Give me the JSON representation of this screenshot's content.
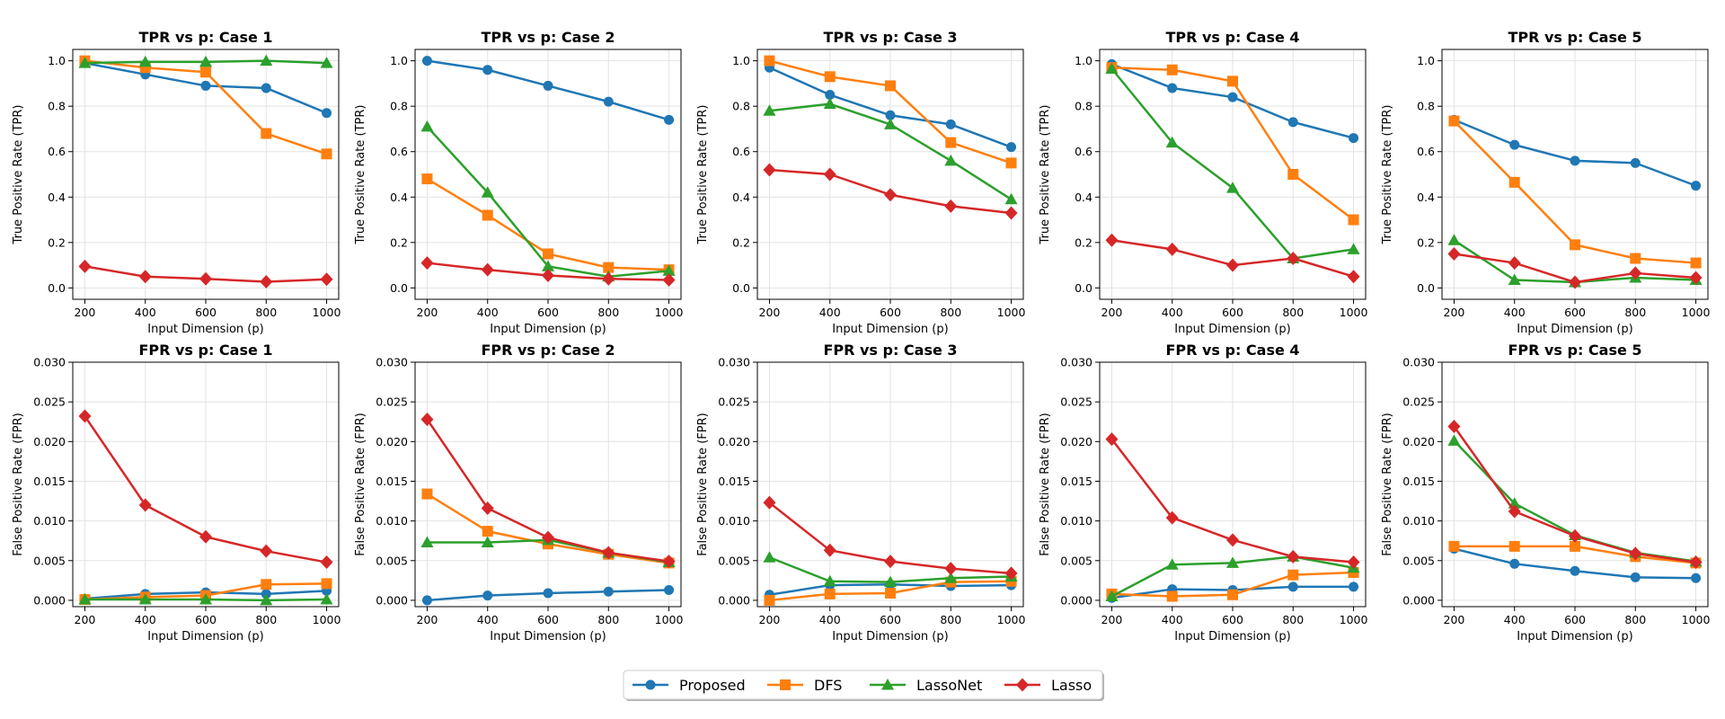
{
  "series_styles": [
    {
      "name": "Proposed",
      "color": "#1f77b4",
      "marker": "circle"
    },
    {
      "name": "DFS",
      "color": "#ff7f0e",
      "marker": "square"
    },
    {
      "name": "LassoNet",
      "color": "#2ca02c",
      "marker": "triangle"
    },
    {
      "name": "Lasso",
      "color": "#d62728",
      "marker": "diamond"
    }
  ],
  "legend": {
    "placement": "bottom-center",
    "labels": [
      "Proposed",
      "DFS",
      "LassoNet",
      "Lasso"
    ]
  },
  "chart_data": [
    {
      "type": "line",
      "title": "TPR vs p: Case 1",
      "xlabel": "Input Dimension (p)",
      "ylabel": "True Positive Rate (TPR)",
      "x": [
        200,
        400,
        600,
        800,
        1000
      ],
      "ylim": [
        -0.05,
        1.05
      ],
      "yticks": [
        0.0,
        0.2,
        0.4,
        0.6,
        0.8,
        1.0
      ],
      "ytick_labels": [
        "0.0",
        "0.2",
        "0.4",
        "0.6",
        "0.8",
        "1.0"
      ],
      "xticks": [
        200,
        400,
        600,
        800,
        1000
      ],
      "xtick_labels": [
        "200",
        "400",
        "600",
        "800",
        "1000"
      ],
      "grid": true,
      "series": [
        {
          "name": "Proposed",
          "values": [
            0.99,
            0.94,
            0.89,
            0.88,
            0.77
          ]
        },
        {
          "name": "DFS",
          "values": [
            1.0,
            0.97,
            0.95,
            0.68,
            0.59
          ]
        },
        {
          "name": "LassoNet",
          "values": [
            0.99,
            0.995,
            0.995,
            1.0,
            0.99
          ]
        },
        {
          "name": "Lasso",
          "values": [
            0.095,
            0.05,
            0.04,
            0.027,
            0.038
          ]
        }
      ]
    },
    {
      "type": "line",
      "title": "TPR vs p: Case 2",
      "xlabel": "Input Dimension (p)",
      "ylabel": "True Positive Rate (TPR)",
      "x": [
        200,
        400,
        600,
        800,
        1000
      ],
      "ylim": [
        -0.05,
        1.05
      ],
      "yticks": [
        0.0,
        0.2,
        0.4,
        0.6,
        0.8,
        1.0
      ],
      "ytick_labels": [
        "0.0",
        "0.2",
        "0.4",
        "0.6",
        "0.8",
        "1.0"
      ],
      "xticks": [
        200,
        400,
        600,
        800,
        1000
      ],
      "xtick_labels": [
        "200",
        "400",
        "600",
        "800",
        "1000"
      ],
      "grid": true,
      "series": [
        {
          "name": "Proposed",
          "values": [
            1.0,
            0.96,
            0.89,
            0.82,
            0.74
          ]
        },
        {
          "name": "DFS",
          "values": [
            0.48,
            0.32,
            0.15,
            0.09,
            0.08
          ]
        },
        {
          "name": "LassoNet",
          "values": [
            0.71,
            0.42,
            0.095,
            0.05,
            0.075
          ]
        },
        {
          "name": "Lasso",
          "values": [
            0.11,
            0.08,
            0.055,
            0.04,
            0.035
          ]
        }
      ]
    },
    {
      "type": "line",
      "title": "TPR vs p: Case 3",
      "xlabel": "Input Dimension (p)",
      "ylabel": "True Positive Rate (TPR)",
      "x": [
        200,
        400,
        600,
        800,
        1000
      ],
      "ylim": [
        -0.05,
        1.05
      ],
      "yticks": [
        0.0,
        0.2,
        0.4,
        0.6,
        0.8,
        1.0
      ],
      "ytick_labels": [
        "0.0",
        "0.2",
        "0.4",
        "0.6",
        "0.8",
        "1.0"
      ],
      "xticks": [
        200,
        400,
        600,
        800,
        1000
      ],
      "xtick_labels": [
        "200",
        "400",
        "600",
        "800",
        "1000"
      ],
      "grid": true,
      "series": [
        {
          "name": "Proposed",
          "values": [
            0.97,
            0.85,
            0.76,
            0.72,
            0.62
          ]
        },
        {
          "name": "DFS",
          "values": [
            1.0,
            0.93,
            0.89,
            0.64,
            0.55
          ]
        },
        {
          "name": "LassoNet",
          "values": [
            0.78,
            0.81,
            0.72,
            0.56,
            0.39
          ]
        },
        {
          "name": "Lasso",
          "values": [
            0.52,
            0.5,
            0.41,
            0.36,
            0.33
          ]
        }
      ]
    },
    {
      "type": "line",
      "title": "TPR vs p: Case 4",
      "xlabel": "Input Dimension (p)",
      "ylabel": "True Positive Rate (TPR)",
      "x": [
        200,
        400,
        600,
        800,
        1000
      ],
      "ylim": [
        -0.05,
        1.05
      ],
      "yticks": [
        0.0,
        0.2,
        0.4,
        0.6,
        0.8,
        1.0
      ],
      "ytick_labels": [
        "0.0",
        "0.2",
        "0.4",
        "0.6",
        "0.8",
        "1.0"
      ],
      "xticks": [
        200,
        400,
        600,
        800,
        1000
      ],
      "xtick_labels": [
        "200",
        "400",
        "600",
        "800",
        "1000"
      ],
      "grid": true,
      "series": [
        {
          "name": "Proposed",
          "values": [
            0.985,
            0.88,
            0.84,
            0.73,
            0.66
          ]
        },
        {
          "name": "DFS",
          "values": [
            0.97,
            0.96,
            0.91,
            0.5,
            0.3
          ]
        },
        {
          "name": "LassoNet",
          "values": [
            0.965,
            0.64,
            0.44,
            0.13,
            0.17
          ]
        },
        {
          "name": "Lasso",
          "values": [
            0.21,
            0.17,
            0.1,
            0.13,
            0.05
          ]
        }
      ]
    },
    {
      "type": "line",
      "title": "TPR vs p: Case 5",
      "xlabel": "Input Dimension (p)",
      "ylabel": "True Positive Rate (TPR)",
      "x": [
        200,
        400,
        600,
        800,
        1000
      ],
      "ylim": [
        -0.05,
        1.05
      ],
      "yticks": [
        0.0,
        0.2,
        0.4,
        0.6,
        0.8,
        1.0
      ],
      "ytick_labels": [
        "0.0",
        "0.2",
        "0.4",
        "0.6",
        "0.8",
        "1.0"
      ],
      "xticks": [
        200,
        400,
        600,
        800,
        1000
      ],
      "xtick_labels": [
        "200",
        "400",
        "600",
        "800",
        "1000"
      ],
      "grid": true,
      "series": [
        {
          "name": "Proposed",
          "values": [
            0.74,
            0.63,
            0.56,
            0.55,
            0.45
          ]
        },
        {
          "name": "DFS",
          "values": [
            0.735,
            0.465,
            0.19,
            0.13,
            0.11
          ]
        },
        {
          "name": "LassoNet",
          "values": [
            0.21,
            0.035,
            0.025,
            0.045,
            0.035
          ]
        },
        {
          "name": "Lasso",
          "values": [
            0.15,
            0.11,
            0.025,
            0.065,
            0.045
          ]
        }
      ]
    },
    {
      "type": "line",
      "title": "FPR vs p: Case 1",
      "xlabel": "Input Dimension (p)",
      "ylabel": "False Positive Rate (FPR)",
      "x": [
        200,
        400,
        600,
        800,
        1000
      ],
      "ylim": [
        -0.0008,
        0.03
      ],
      "yticks": [
        0.0,
        0.005,
        0.01,
        0.015,
        0.02,
        0.025,
        0.03
      ],
      "ytick_labels": [
        "0.000",
        "0.005",
        "0.010",
        "0.015",
        "0.020",
        "0.025",
        "0.030"
      ],
      "xticks": [
        200,
        400,
        600,
        800,
        1000
      ],
      "xtick_labels": [
        "200",
        "400",
        "600",
        "800",
        "1000"
      ],
      "grid": true,
      "series": [
        {
          "name": "Proposed",
          "values": [
            0.0002,
            0.0008,
            0.001,
            0.0008,
            0.0012
          ]
        },
        {
          "name": "DFS",
          "values": [
            0.0001,
            0.0004,
            0.0006,
            0.002,
            0.0021
          ]
        },
        {
          "name": "LassoNet",
          "values": [
            0.0001,
            0.0001,
            0.0001,
            0.0,
            0.0001
          ]
        },
        {
          "name": "Lasso",
          "values": [
            0.0232,
            0.012,
            0.008,
            0.0062,
            0.0048
          ]
        }
      ]
    },
    {
      "type": "line",
      "title": "FPR vs p: Case 2",
      "xlabel": "Input Dimension (p)",
      "ylabel": "False Positive Rate (FPR)",
      "x": [
        200,
        400,
        600,
        800,
        1000
      ],
      "ylim": [
        -0.0008,
        0.03
      ],
      "yticks": [
        0.0,
        0.005,
        0.01,
        0.015,
        0.02,
        0.025,
        0.03
      ],
      "ytick_labels": [
        "0.000",
        "0.005",
        "0.010",
        "0.015",
        "0.020",
        "0.025",
        "0.030"
      ],
      "xticks": [
        200,
        400,
        600,
        800,
        1000
      ],
      "xtick_labels": [
        "200",
        "400",
        "600",
        "800",
        "1000"
      ],
      "grid": true,
      "series": [
        {
          "name": "Proposed",
          "values": [
            0.0,
            0.0006,
            0.0009,
            0.0011,
            0.0013
          ]
        },
        {
          "name": "DFS",
          "values": [
            0.0134,
            0.0087,
            0.0071,
            0.0058,
            0.0047
          ]
        },
        {
          "name": "LassoNet",
          "values": [
            0.0073,
            0.0073,
            0.0076,
            0.006,
            0.0048
          ]
        },
        {
          "name": "Lasso",
          "values": [
            0.0228,
            0.0116,
            0.0079,
            0.006,
            0.0049
          ]
        }
      ]
    },
    {
      "type": "line",
      "title": "FPR vs p: Case 3",
      "xlabel": "Input Dimension (p)",
      "ylabel": "False Positive Rate (FPR)",
      "x": [
        200,
        400,
        600,
        800,
        1000
      ],
      "ylim": [
        -0.0008,
        0.03
      ],
      "yticks": [
        0.0,
        0.005,
        0.01,
        0.015,
        0.02,
        0.025,
        0.03
      ],
      "ytick_labels": [
        "0.000",
        "0.005",
        "0.010",
        "0.015",
        "0.020",
        "0.025",
        "0.030"
      ],
      "xticks": [
        200,
        400,
        600,
        800,
        1000
      ],
      "xtick_labels": [
        "200",
        "400",
        "600",
        "800",
        "1000"
      ],
      "grid": true,
      "series": [
        {
          "name": "Proposed",
          "values": [
            0.0007,
            0.0019,
            0.002,
            0.0018,
            0.0019
          ]
        },
        {
          "name": "DFS",
          "values": [
            0.0,
            0.0008,
            0.0009,
            0.0023,
            0.0024
          ]
        },
        {
          "name": "LassoNet",
          "values": [
            0.0054,
            0.0024,
            0.0023,
            0.0028,
            0.003
          ]
        },
        {
          "name": "Lasso",
          "values": [
            0.0123,
            0.0063,
            0.0049,
            0.004,
            0.0034
          ]
        }
      ]
    },
    {
      "type": "line",
      "title": "FPR vs p: Case 4",
      "xlabel": "Input Dimension (p)",
      "ylabel": "False Positive Rate (FPR)",
      "x": [
        200,
        400,
        600,
        800,
        1000
      ],
      "ylim": [
        -0.0008,
        0.03
      ],
      "yticks": [
        0.0,
        0.005,
        0.01,
        0.015,
        0.02,
        0.025,
        0.03
      ],
      "ytick_labels": [
        "0.000",
        "0.005",
        "0.010",
        "0.015",
        "0.020",
        "0.025",
        "0.030"
      ],
      "xticks": [
        200,
        400,
        600,
        800,
        1000
      ],
      "xtick_labels": [
        "200",
        "400",
        "600",
        "800",
        "1000"
      ],
      "grid": true,
      "series": [
        {
          "name": "Proposed",
          "values": [
            0.0003,
            0.0014,
            0.0013,
            0.0017,
            0.0017
          ]
        },
        {
          "name": "DFS",
          "values": [
            0.0008,
            0.0005,
            0.0007,
            0.0032,
            0.0035
          ]
        },
        {
          "name": "LassoNet",
          "values": [
            0.0005,
            0.0045,
            0.0047,
            0.0055,
            0.0041
          ]
        },
        {
          "name": "Lasso",
          "values": [
            0.0203,
            0.0104,
            0.0076,
            0.0055,
            0.0048
          ]
        }
      ]
    },
    {
      "type": "line",
      "title": "FPR vs p: Case 5",
      "xlabel": "Input Dimension (p)",
      "ylabel": "False Positive Rate (FPR)",
      "x": [
        200,
        400,
        600,
        800,
        1000
      ],
      "ylim": [
        -0.0008,
        0.03
      ],
      "yticks": [
        0.0,
        0.005,
        0.01,
        0.015,
        0.02,
        0.025,
        0.03
      ],
      "ytick_labels": [
        "0.000",
        "0.005",
        "0.010",
        "0.015",
        "0.020",
        "0.025",
        "0.030"
      ],
      "xticks": [
        200,
        400,
        600,
        800,
        1000
      ],
      "xtick_labels": [
        "200",
        "400",
        "600",
        "800",
        "1000"
      ],
      "grid": true,
      "series": [
        {
          "name": "Proposed",
          "values": [
            0.0065,
            0.0046,
            0.0037,
            0.0029,
            0.0028
          ]
        },
        {
          "name": "DFS",
          "values": [
            0.0068,
            0.0068,
            0.0068,
            0.0055,
            0.0047
          ]
        },
        {
          "name": "LassoNet",
          "values": [
            0.0201,
            0.0122,
            0.0082,
            0.006,
            0.0049
          ]
        },
        {
          "name": "Lasso",
          "values": [
            0.0219,
            0.0112,
            0.0081,
            0.0059,
            0.0048
          ]
        }
      ]
    }
  ]
}
